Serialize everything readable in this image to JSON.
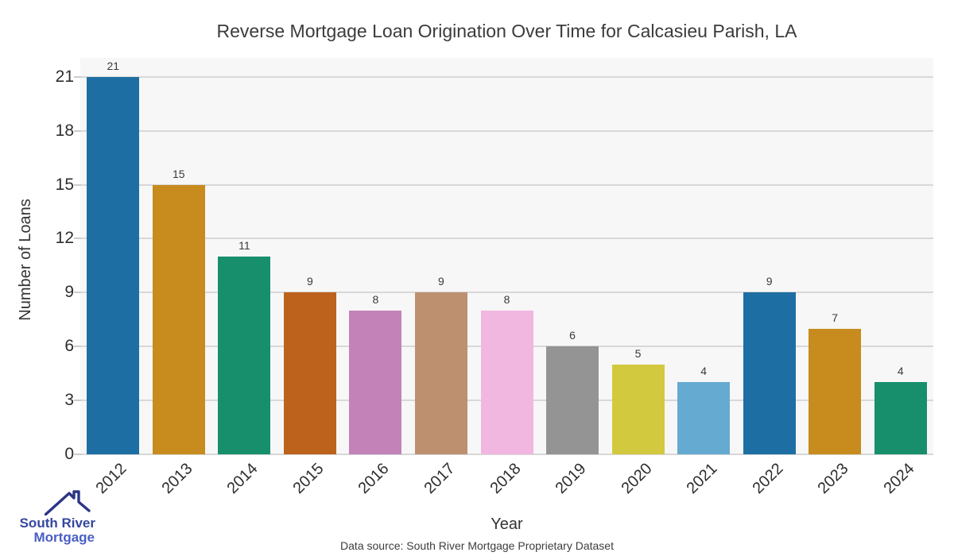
{
  "chart_data": {
    "type": "bar",
    "title": "Reverse Mortgage Loan Origination Over Time for Calcasieu Parish, LA",
    "categories": [
      "2012",
      "2013",
      "2014",
      "2015",
      "2016",
      "2017",
      "2018",
      "2019",
      "2020",
      "2021",
      "2022",
      "2023",
      "2024"
    ],
    "values": [
      21,
      15,
      11,
      9,
      8,
      9,
      8,
      6,
      5,
      4,
      9,
      7,
      4
    ],
    "xlabel": "Year",
    "ylabel": "Number of Loans",
    "ylim": [
      0,
      22.05
    ],
    "yticks": [
      0,
      3,
      6,
      9,
      12,
      15,
      18,
      21
    ],
    "grid": true,
    "legend": "none",
    "bar_palette": [
      "#1d6fa3",
      "#c78b1e",
      "#178f6c",
      "#bc621d",
      "#c383b8",
      "#bd9170",
      "#f2b7e0",
      "#949494",
      "#d3c93f",
      "#65aad1"
    ]
  },
  "footer": {
    "source_text": "Data source: South River Mortgage Proprietary Dataset"
  },
  "logo": {
    "line1": "South River",
    "line2": "Mortgage",
    "line1_color": "#35479e",
    "line2_color": "#4a5ec4",
    "roof_color": "#2b3585"
  },
  "colors": {
    "panel_bg": "#f7f7f7",
    "gridline": "#d8d8d8",
    "tick_mark": "#cccccc"
  }
}
